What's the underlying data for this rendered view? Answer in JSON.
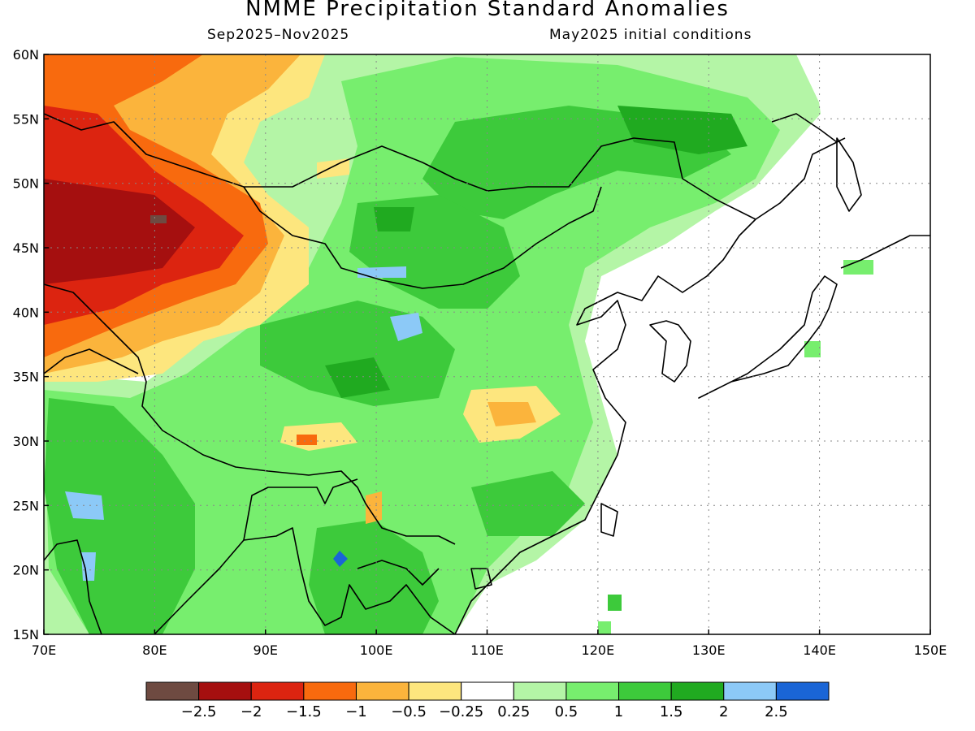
{
  "title": "NMME Precipitation Standard Anomalies",
  "subtitle_left": "Sep2025–Nov2025",
  "subtitle_right": "May2025 initial conditions",
  "lon_ticks": [
    "70E",
    "80E",
    "90E",
    "100E",
    "110E",
    "120E",
    "130E",
    "140E",
    "150E"
  ],
  "lat_ticks": [
    "60N",
    "55N",
    "50N",
    "45N",
    "40N",
    "35N",
    "30N",
    "25N",
    "20N",
    "15N"
  ],
  "colorbar": {
    "colors": [
      "#6e4a41",
      "#a50f0f",
      "#dc2410",
      "#f86a0e",
      "#fbb43c",
      "#fde67e",
      "#ffffff",
      "#b4f5a6",
      "#77ee6e",
      "#3dca3b",
      "#20aa20",
      "#8cc9f7",
      "#1a65d6"
    ],
    "labels": [
      "−2.5",
      "−2",
      "−1.5",
      "−1",
      "−0.5",
      "−0.25",
      "0.25",
      "0.5",
      "1",
      "1.5",
      "2",
      "2.5"
    ]
  }
}
